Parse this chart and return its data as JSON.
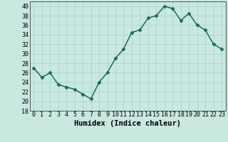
{
  "x": [
    0,
    1,
    2,
    3,
    4,
    5,
    6,
    7,
    8,
    9,
    10,
    11,
    12,
    13,
    14,
    15,
    16,
    17,
    18,
    19,
    20,
    21,
    22,
    23
  ],
  "y": [
    27,
    25,
    26,
    23.5,
    23,
    22.5,
    21.5,
    20.5,
    24,
    26,
    29,
    31,
    34.5,
    35,
    37.5,
    38,
    40,
    39.5,
    37,
    38.5,
    36,
    35,
    32,
    31
  ],
  "line_color": "#1a6b5a",
  "marker": "D",
  "marker_size": 2.5,
  "bg_color": "#c8e8e0",
  "grid_color": "#aed4cc",
  "xlabel": "Humidex (Indice chaleur)",
  "ylim": [
    18,
    41
  ],
  "yticks": [
    18,
    20,
    22,
    24,
    26,
    28,
    30,
    32,
    34,
    36,
    38,
    40
  ],
  "xticks": [
    0,
    1,
    2,
    3,
    4,
    5,
    6,
    7,
    8,
    9,
    10,
    11,
    12,
    13,
    14,
    15,
    16,
    17,
    18,
    19,
    20,
    21,
    22,
    23
  ],
  "xlabel_fontsize": 7.5,
  "tick_fontsize": 6,
  "line_width": 1.1
}
